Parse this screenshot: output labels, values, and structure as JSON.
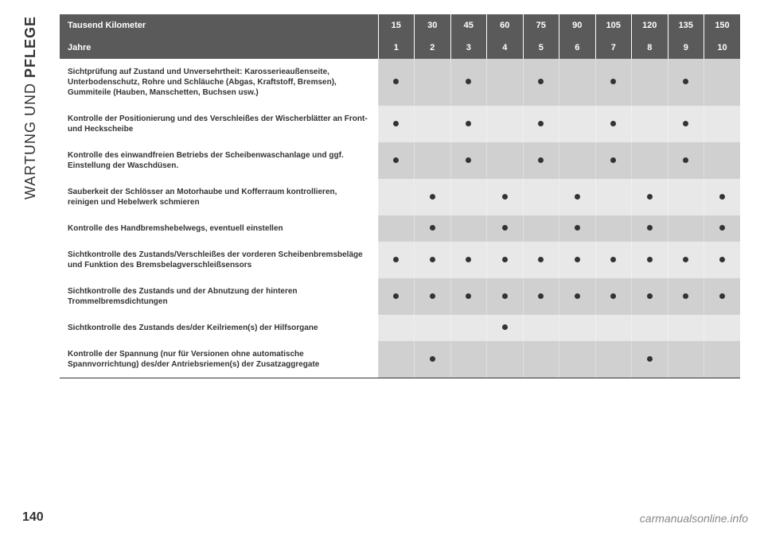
{
  "sidebar": {
    "text_normal": "WARTUNG UND ",
    "text_bold": "PFLEGE"
  },
  "page_number": "140",
  "watermark": "carmanualsonline.info",
  "table": {
    "header1": {
      "label": "Tausend Kilometer",
      "values": [
        "15",
        "30",
        "45",
        "60",
        "75",
        "90",
        "105",
        "120",
        "135",
        "150"
      ]
    },
    "header2": {
      "label": "Jahre",
      "values": [
        "1",
        "2",
        "3",
        "4",
        "5",
        "6",
        "7",
        "8",
        "9",
        "10"
      ]
    },
    "rows": [
      {
        "label": "Sichtprüfung auf Zustand und Unversehrtheit: Karosserieaußenseite, Unterbodenschutz, Rohre und Schläuche (Abgas, Kraftstoff, Bremsen), Gummiteile (Hauben, Manschetten, Buchsen usw.)",
        "marks": [
          1,
          0,
          1,
          0,
          1,
          0,
          1,
          0,
          1,
          0
        ],
        "shade": "odd"
      },
      {
        "label": "Kontrolle der Positionierung und des Verschleißes der Wischerblätter an Front- und Heckscheibe",
        "marks": [
          1,
          0,
          1,
          0,
          1,
          0,
          1,
          0,
          1,
          0
        ],
        "shade": "even"
      },
      {
        "label": "Kontrolle des einwandfreien Betriebs der Scheibenwaschanlage und ggf. Einstellung der Waschdüsen.",
        "marks": [
          1,
          0,
          1,
          0,
          1,
          0,
          1,
          0,
          1,
          0
        ],
        "shade": "odd"
      },
      {
        "label": "Sauberkeit der Schlösser an Motorhaube und Kofferraum kontrollieren, reinigen und Hebelwerk schmieren",
        "marks": [
          0,
          1,
          0,
          1,
          0,
          1,
          0,
          1,
          0,
          1
        ],
        "shade": "even"
      },
      {
        "label": "Kontrolle des Handbremshebelwegs, eventuell einstellen",
        "marks": [
          0,
          1,
          0,
          1,
          0,
          1,
          0,
          1,
          0,
          1
        ],
        "shade": "odd"
      },
      {
        "label": "Sichtkontrolle des Zustands/Verschleißes der vorderen Scheibenbremsbeläge und Funktion des Bremsbelagverschleißsensors",
        "marks": [
          1,
          1,
          1,
          1,
          1,
          1,
          1,
          1,
          1,
          1
        ],
        "shade": "even"
      },
      {
        "label": "Sichtkontrolle des Zustands und der Abnutzung der hinteren Trommelbremsdichtungen",
        "marks": [
          1,
          1,
          1,
          1,
          1,
          1,
          1,
          1,
          1,
          1
        ],
        "shade": "odd"
      },
      {
        "label": "Sichtkontrolle des Zustands des/der Keilriemen(s) der Hilfsorgane",
        "marks": [
          0,
          0,
          0,
          1,
          0,
          0,
          0,
          0,
          0,
          0
        ],
        "shade": "even"
      },
      {
        "label": "Kontrolle der Spannung (nur für Versionen ohne automatische Spannvorrichtung) des/der Antriebsriemen(s) der Zusatzaggregate",
        "marks": [
          0,
          1,
          0,
          0,
          0,
          0,
          0,
          1,
          0,
          0
        ],
        "shade": "odd"
      }
    ]
  }
}
